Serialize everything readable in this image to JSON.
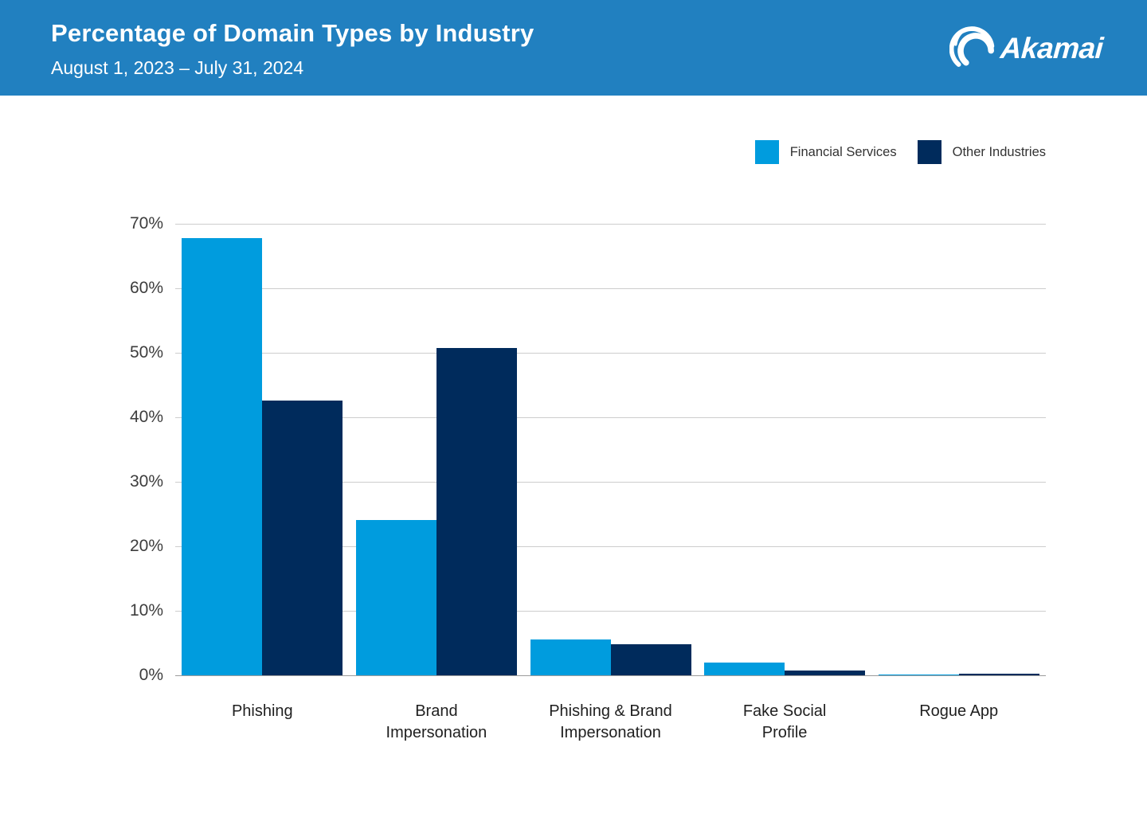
{
  "header": {
    "title": "Percentage of Domain Types by Industry",
    "subtitle": "August 1, 2023 – July 31, 2024",
    "background_color": "#2180c0",
    "brand": "Akamai"
  },
  "legend": {
    "position": "top-right"
  },
  "chart_data": {
    "type": "bar",
    "title": "Percentage of Domain Types by Industry",
    "subtitle": "August 1, 2023 – July 31, 2024",
    "categories": [
      "Phishing",
      "Brand Impersonation",
      "Phishing & Brand Impersonation",
      "Fake Social Profile",
      "Rogue App"
    ],
    "categories_wrapped": [
      [
        "Phishing"
      ],
      [
        "Brand",
        "Impersonation"
      ],
      [
        "Phishing & Brand",
        "Impersonation"
      ],
      [
        "Fake Social",
        "Profile"
      ],
      [
        "Rogue App"
      ]
    ],
    "series": [
      {
        "name": "Financial Services",
        "color": "#009cde",
        "values": [
          67.8,
          24.1,
          5.6,
          2.0,
          0.1
        ]
      },
      {
        "name": "Other Industries",
        "color": "#002b5c",
        "values": [
          42.6,
          50.8,
          4.8,
          0.7,
          0.3
        ]
      }
    ],
    "xlabel": "",
    "ylabel": "",
    "axis": {
      "min": 0,
      "max": 70,
      "step": 10,
      "tick_format": "{v}%"
    },
    "ticks": [
      "0%",
      "10%",
      "20%",
      "30%",
      "40%",
      "50%",
      "60%",
      "70%"
    ],
    "grid": "horizontal",
    "legend_position": "top-right",
    "gridline_color": "#cdcdcd",
    "baseline_color": "#9c9c9c"
  }
}
